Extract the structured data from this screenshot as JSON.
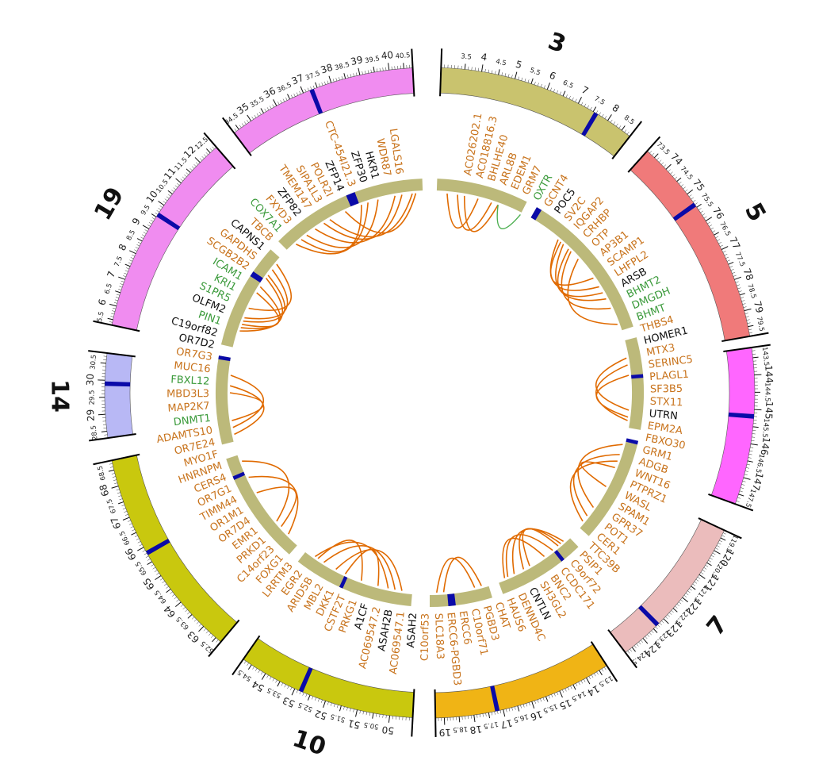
{
  "colors": {
    "inner_track": "#bcb97a",
    "link": "#e06a00",
    "link_alt": "#4caf50",
    "gene_orange": "#c8731c",
    "gene_green": "#3a9a3a",
    "gene_black": "#111111",
    "highlight": "#0a0aa8"
  },
  "chromosomes": [
    {
      "id": "3",
      "label": "3",
      "start": 2.8,
      "end": 8.8,
      "color": "#c9c36e",
      "ticks": [
        "3.5",
        "4",
        "4.5",
        "5",
        "5.5",
        "6",
        "6.5",
        "7",
        "7.5",
        "8",
        "8.5"
      ],
      "highlight": 7.6
    },
    {
      "id": "5",
      "label": "5",
      "start": 73.2,
      "end": 79.8,
      "color": "#f07a7a",
      "ticks": [
        "73.5",
        "74",
        "74.5",
        "75",
        "75.5",
        "76",
        "76.5",
        "77",
        "77.5",
        "78",
        "78.5",
        "79",
        "79.5"
      ],
      "highlight": 75.4
    },
    {
      "id": "5b",
      "label": "",
      "start": 143.2,
      "end": 147.8,
      "color": "#ff66ff",
      "ticks": [
        "143.5",
        "144",
        "144.5",
        "145",
        "145.5",
        "146",
        "146.5",
        "147",
        "147.5"
      ],
      "highlight": 145.2
    },
    {
      "id": "7",
      "label": "7",
      "start": 119.2,
      "end": 124.8,
      "color": "#ebbcbc",
      "ticks": [
        "119.5",
        "120",
        "120.5",
        "121",
        "121.5",
        "122",
        "122.5",
        "123",
        "123.5",
        "124",
        "124.5"
      ],
      "highlight": 123.3
    },
    {
      "id": "17",
      "label": "",
      "start": 13.2,
      "end": 19.3,
      "color": "#f0b415",
      "ticks": [
        "13.5",
        "14",
        "14.5",
        "15",
        "15.5",
        "16",
        "16.5",
        "17",
        "17.5",
        "18",
        "18.5",
        "19"
      ],
      "highlight": 17.2
    },
    {
      "id": "10",
      "label": "10",
      "start": 49.3,
      "end": 54.8,
      "color": "#c9c80e",
      "ticks": [
        "50",
        "50.5",
        "51",
        "51.5",
        "52",
        "52.5",
        "53",
        "53.5",
        "54",
        "54.5"
      ],
      "highlight": 52.8
    },
    {
      "id": "10b",
      "label": "",
      "start": 62.3,
      "end": 68.8,
      "color": "#c9c80e",
      "ticks": [
        "62.5",
        "63",
        "63.5",
        "64",
        "64.5",
        "65",
        "65.5",
        "66",
        "66.5",
        "67",
        "67.5",
        "68",
        "68.5"
      ],
      "highlight": 65.8
    },
    {
      "id": "14",
      "label": "14",
      "start": 28.3,
      "end": 30.8,
      "color": "#b8b8f5",
      "ticks": [
        "28.5",
        "29",
        "29.5",
        "30",
        "30.5"
      ],
      "highlight": 29.9
    },
    {
      "id": "19",
      "label": "19",
      "start": 5.3,
      "end": 12.8,
      "color": "#f08cf0",
      "ticks": [
        "5.5",
        "6",
        "6.5",
        "7",
        "7.5",
        "8",
        "8.5",
        "9",
        "9.5",
        "10",
        "10.5",
        "11",
        "11.5",
        "12",
        "12.5"
      ],
      "highlight": 9.6
    },
    {
      "id": "19b",
      "label": "",
      "start": 34.3,
      "end": 40.8,
      "color": "#f08cf0",
      "ticks": [
        "34.5",
        "35",
        "35.5",
        "36",
        "36.5",
        "37",
        "37.5",
        "38",
        "38.5",
        "39",
        "39.5",
        "40",
        "40.5"
      ],
      "highlight": 37.3
    }
  ],
  "gene_labels": [
    {
      "text": "AC026202.1",
      "c": "o"
    },
    {
      "text": "AC018816.3",
      "c": "o"
    },
    {
      "text": "BHLHE40",
      "c": "o"
    },
    {
      "text": "ARL8B",
      "c": "o"
    },
    {
      "text": "EDEM1",
      "c": "o"
    },
    {
      "text": "GRM7",
      "c": "o"
    },
    {
      "text": "OXTR",
      "c": "g"
    },
    {
      "text": "GCNT4",
      "c": "o"
    },
    {
      "text": "POC5",
      "c": "k"
    },
    {
      "text": "SV2C",
      "c": "o"
    },
    {
      "text": "IQGAP2",
      "c": "o"
    },
    {
      "text": "CRHBP",
      "c": "o"
    },
    {
      "text": "OTP",
      "c": "o"
    },
    {
      "text": "AP3B1",
      "c": "o"
    },
    {
      "text": "SCAMP1",
      "c": "o"
    },
    {
      "text": "LHFPL2",
      "c": "o"
    },
    {
      "text": "ARSB",
      "c": "k"
    },
    {
      "text": "BHMT2",
      "c": "g"
    },
    {
      "text": "DMGDH",
      "c": "g"
    },
    {
      "text": "BHMT",
      "c": "g"
    },
    {
      "text": "THBS4",
      "c": "o"
    },
    {
      "text": "HOMER1",
      "c": "k"
    },
    {
      "text": "MTX3",
      "c": "o"
    },
    {
      "text": "SERINC5",
      "c": "o"
    },
    {
      "text": "PLAGL1",
      "c": "o"
    },
    {
      "text": "SF3B5",
      "c": "o"
    },
    {
      "text": "STX11",
      "c": "o"
    },
    {
      "text": "UTRN",
      "c": "k"
    },
    {
      "text": "EPM2A",
      "c": "o"
    },
    {
      "text": "FBXO30",
      "c": "o"
    },
    {
      "text": "GRM1",
      "c": "o"
    },
    {
      "text": "ADGB",
      "c": "o"
    },
    {
      "text": "WNT16",
      "c": "o"
    },
    {
      "text": "PTPRZ1",
      "c": "o"
    },
    {
      "text": "WASL",
      "c": "o"
    },
    {
      "text": "SPAM1",
      "c": "o"
    },
    {
      "text": "GPR37",
      "c": "o"
    },
    {
      "text": "POT1",
      "c": "o"
    },
    {
      "text": "CER1",
      "c": "o"
    },
    {
      "text": "TTC39B",
      "c": "o"
    },
    {
      "text": "PSIP1",
      "c": "o"
    },
    {
      "text": "C9orf72",
      "c": "o"
    },
    {
      "text": "CCDC171",
      "c": "o"
    },
    {
      "text": "BNC2",
      "c": "o"
    },
    {
      "text": "SH3GL2",
      "c": "o"
    },
    {
      "text": "CNTLN",
      "c": "k"
    },
    {
      "text": "DENND4C",
      "c": "o"
    },
    {
      "text": "HAUS6",
      "c": "o"
    },
    {
      "text": "CHAT",
      "c": "o"
    },
    {
      "text": "PGBD3",
      "c": "o"
    },
    {
      "text": "C10orf71",
      "c": "o"
    },
    {
      "text": "ERCC6",
      "c": "o"
    },
    {
      "text": "ERCC6-PGBD3",
      "c": "o"
    },
    {
      "text": "SLC18A3",
      "c": "o"
    },
    {
      "text": "C10orf53",
      "c": "o"
    },
    {
      "text": "ASAH2",
      "c": "k"
    },
    {
      "text": "AC069547.1",
      "c": "o"
    },
    {
      "text": "ASAH2B",
      "c": "k"
    },
    {
      "text": "AC069547.2",
      "c": "o"
    },
    {
      "text": "A1CF",
      "c": "k"
    },
    {
      "text": "PRKG1",
      "c": "o"
    },
    {
      "text": "CSTF2T",
      "c": "o"
    },
    {
      "text": "DKK1",
      "c": "o"
    },
    {
      "text": "MBL2",
      "c": "o"
    },
    {
      "text": "ARID5B",
      "c": "o"
    },
    {
      "text": "EGR2",
      "c": "o"
    },
    {
      "text": "LRRTM3",
      "c": "o"
    },
    {
      "text": "FOXG1",
      "c": "o"
    },
    {
      "text": "C14orf23",
      "c": "o"
    },
    {
      "text": "PRKD1",
      "c": "o"
    },
    {
      "text": "EMR1",
      "c": "o"
    },
    {
      "text": "OR7D4",
      "c": "o"
    },
    {
      "text": "OR1M1",
      "c": "o"
    },
    {
      "text": "TIMM44",
      "c": "o"
    },
    {
      "text": "OR7G1",
      "c": "o"
    },
    {
      "text": "CERS4",
      "c": "o"
    },
    {
      "text": "HNRNPM",
      "c": "o"
    },
    {
      "text": "MYO1F",
      "c": "o"
    },
    {
      "text": "OR7E24",
      "c": "o"
    },
    {
      "text": "ADAMTS10",
      "c": "o"
    },
    {
      "text": "DNMT1",
      "c": "g"
    },
    {
      "text": "MAP2K7",
      "c": "o"
    },
    {
      "text": "MBD3L3",
      "c": "o"
    },
    {
      "text": "FBXL12",
      "c": "g"
    },
    {
      "text": "MUC16",
      "c": "o"
    },
    {
      "text": "OR7G3",
      "c": "o"
    },
    {
      "text": "OR7D2",
      "c": "k"
    },
    {
      "text": "C19orf82",
      "c": "k"
    },
    {
      "text": "PIN1",
      "c": "g"
    },
    {
      "text": "OLFM2",
      "c": "k"
    },
    {
      "text": "S1PR5",
      "c": "g"
    },
    {
      "text": "KRI1",
      "c": "g"
    },
    {
      "text": "ICAM1",
      "c": "g"
    },
    {
      "text": "SCGB2B2",
      "c": "o"
    },
    {
      "text": "GAPDHS",
      "c": "o"
    },
    {
      "text": "CAPNS1",
      "c": "k"
    },
    {
      "text": "TBCB",
      "c": "o"
    },
    {
      "text": "COX7A1",
      "c": "g"
    },
    {
      "text": "FXYD3",
      "c": "o"
    },
    {
      "text": "ZFP82",
      "c": "k"
    },
    {
      "text": "TMEM147",
      "c": "o"
    },
    {
      "text": "SIPA1L3",
      "c": "o"
    },
    {
      "text": "POLR2I",
      "c": "o"
    },
    {
      "text": "ZFP14",
      "c": "k"
    },
    {
      "text": "CTC-454I21.3",
      "c": "o"
    },
    {
      "text": "ZFP30",
      "c": "k"
    },
    {
      "text": "HKR1",
      "c": "k"
    },
    {
      "text": "WDR87",
      "c": "o"
    },
    {
      "text": "LGALS16",
      "c": "o"
    }
  ]
}
